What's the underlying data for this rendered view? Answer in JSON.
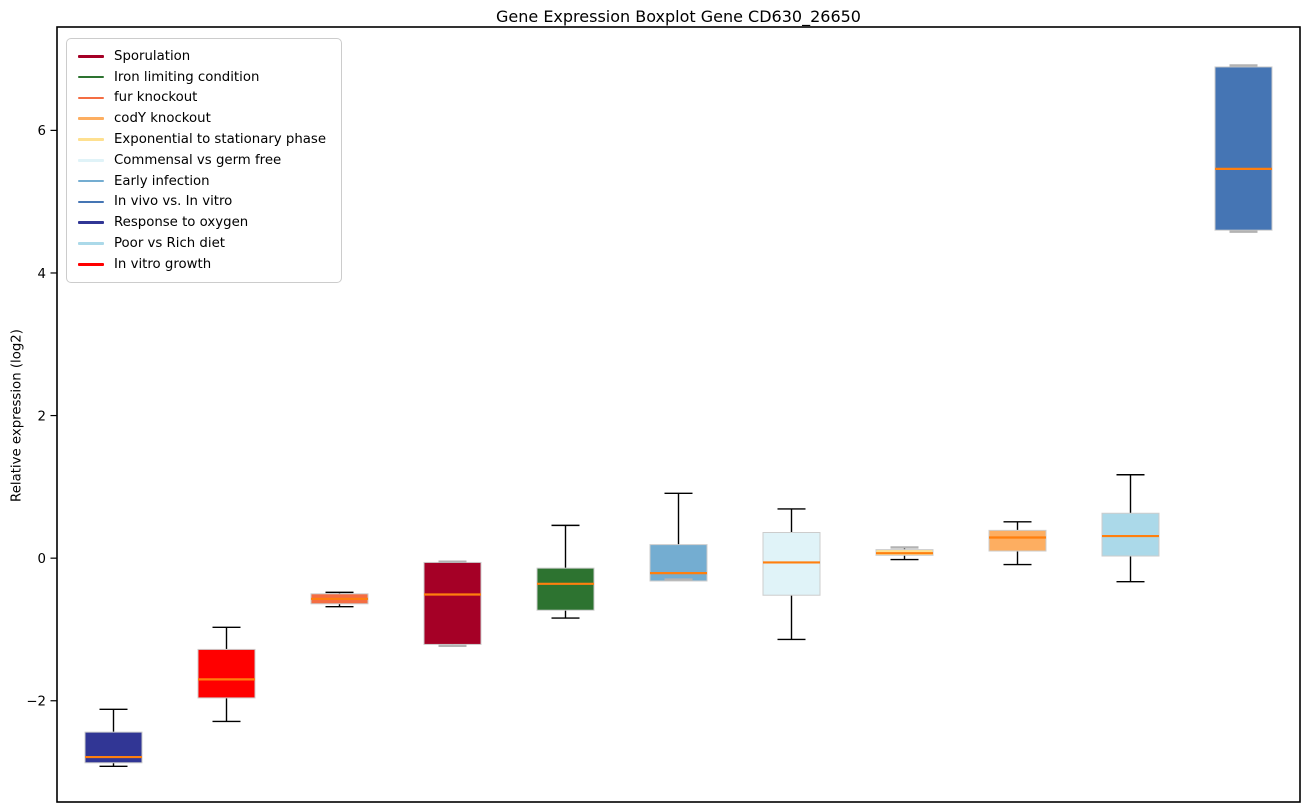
{
  "figure": {
    "title": "Gene Expression Boxplot Gene CD630_26650",
    "ylabel": "Relative expression (log2)"
  },
  "chart_data": {
    "type": "boxplot",
    "title": "Gene Expression Boxplot Gene CD630_26650",
    "xlabel": "",
    "ylabel": "Relative expression (log2)",
    "ylim": [
      -3.42,
      7.45
    ],
    "yticks": [
      6,
      4,
      2,
      0,
      -2
    ],
    "grid": false,
    "x_tick_labels": [],
    "style": {
      "median_color": "#ff7f0e",
      "box_edge_color": "#cccccc",
      "whisker_color": "#000000",
      "gray_cap_color": "#b3b3b3",
      "spine_color": "#000000",
      "background": "#ffffff"
    },
    "legend": {
      "position": "upper-left",
      "entries": [
        {
          "label": "Sporulation",
          "color": "#a50026"
        },
        {
          "label": "Iron limiting condition",
          "color": "#2d7330"
        },
        {
          "label": "fur knockout",
          "color": "#f46d43"
        },
        {
          "label": "codY knockout",
          "color": "#fdae61"
        },
        {
          "label": "Exponential to stationary phase",
          "color": "#fee090"
        },
        {
          "label": "Commensal vs germ free",
          "color": "#e0f3f8"
        },
        {
          "label": "Early infection",
          "color": "#74add1"
        },
        {
          "label": "In vivo vs. In vitro",
          "color": "#4575b4"
        },
        {
          "label": "Response to oxygen",
          "color": "#313695"
        },
        {
          "label": "Poor vs Rich diet",
          "color": "#abd9e9"
        },
        {
          "label": "In vitro growth",
          "color": "#ff0000"
        }
      ]
    },
    "boxes": [
      {
        "label": "Response to oxygen",
        "color": "#313695",
        "whisker_low": -2.92,
        "q1": -2.87,
        "median": -2.79,
        "q3": -2.44,
        "whisker_high": -2.12,
        "cap_low_gray": false,
        "cap_high_gray": false
      },
      {
        "label": "In vitro growth",
        "color": "#ff0000",
        "whisker_low": -2.29,
        "q1": -1.96,
        "median": -1.7,
        "q3": -1.28,
        "whisker_high": -0.97,
        "cap_low_gray": false,
        "cap_high_gray": false
      },
      {
        "label": "fur knockout",
        "color": "#f46d43",
        "whisker_low": -0.68,
        "q1": -0.64,
        "median": -0.57,
        "q3": -0.5,
        "whisker_high": -0.48,
        "cap_low_gray": false,
        "cap_high_gray": false
      },
      {
        "label": "Sporulation",
        "color": "#a50026",
        "whisker_low": -1.23,
        "q1": -1.21,
        "median": -0.51,
        "q3": -0.06,
        "whisker_high": -0.05,
        "cap_low_gray": true,
        "cap_high_gray": true
      },
      {
        "label": "Iron limiting condition",
        "color": "#2d7330",
        "whisker_low": -0.84,
        "q1": -0.73,
        "median": -0.36,
        "q3": -0.14,
        "whisker_high": 0.46,
        "cap_low_gray": false,
        "cap_high_gray": false
      },
      {
        "label": "Early infection",
        "color": "#74add1",
        "whisker_low": -0.3,
        "q1": -0.32,
        "median": -0.21,
        "q3": 0.19,
        "whisker_high": 0.91,
        "cap_low_gray": true,
        "cap_high_gray": false
      },
      {
        "label": "Commensal vs germ free",
        "color": "#e0f3f8",
        "whisker_low": -1.14,
        "q1": -0.52,
        "median": -0.06,
        "q3": 0.36,
        "whisker_high": 0.69,
        "cap_low_gray": false,
        "cap_high_gray": false
      },
      {
        "label": "Exponential to stationary phase",
        "color": "#fee090",
        "whisker_low": -0.02,
        "q1": 0.04,
        "median": 0.07,
        "q3": 0.12,
        "whisker_high": 0.15,
        "cap_low_gray": false,
        "cap_high_gray": true
      },
      {
        "label": "codY knockout",
        "color": "#fdae61",
        "whisker_low": -0.09,
        "q1": 0.1,
        "median": 0.29,
        "q3": 0.39,
        "whisker_high": 0.51,
        "cap_low_gray": false,
        "cap_high_gray": false
      },
      {
        "label": "Poor vs Rich diet",
        "color": "#abd9e9",
        "whisker_low": -0.33,
        "q1": 0.03,
        "median": 0.31,
        "q3": 0.63,
        "whisker_high": 1.17,
        "cap_low_gray": false,
        "cap_high_gray": false
      },
      {
        "label": "In vivo vs. In vitro",
        "color": "#4575b4",
        "whisker_low": 4.58,
        "q1": 4.6,
        "median": 5.46,
        "q3": 6.89,
        "whisker_high": 6.91,
        "cap_low_gray": true,
        "cap_high_gray": true
      }
    ]
  }
}
